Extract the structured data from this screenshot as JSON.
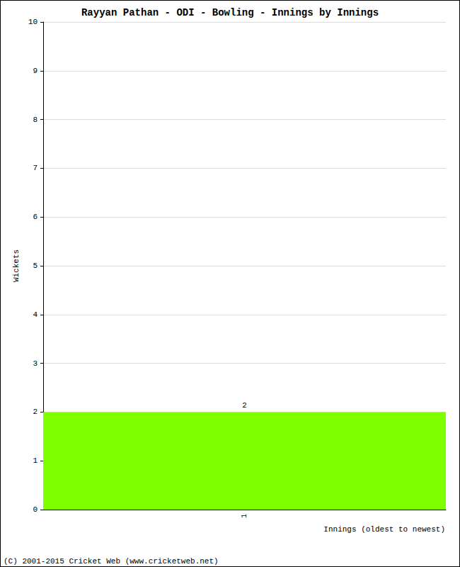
{
  "chart_data": {
    "type": "bar",
    "title": "Rayyan Pathan - ODI - Bowling - Innings by Innings",
    "x_label": "Innings (oldest to newest)",
    "y_label": "Wickets",
    "categories": [
      "1"
    ],
    "values": [
      2
    ],
    "color": "#7fff00",
    "ylim": [
      0,
      10
    ],
    "yticks": [
      0,
      1,
      2,
      3,
      4,
      5,
      6,
      7,
      8,
      9,
      10
    ],
    "grid": true,
    "data_labels": true,
    "annotations": [
      "(C) 2001-2015 Cricket Web (www.cricketweb.net)"
    ]
  }
}
